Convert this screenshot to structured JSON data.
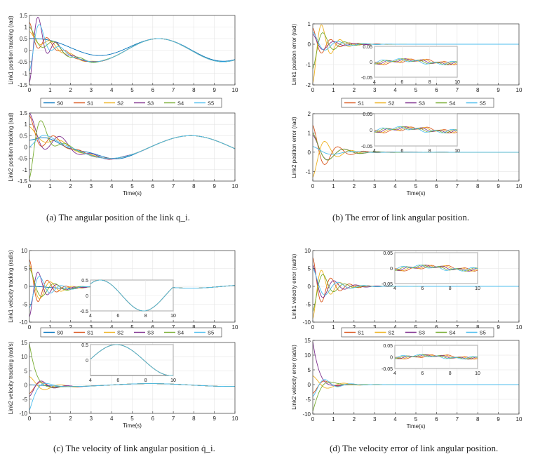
{
  "figure": {
    "captions": {
      "a": "(a)  The angular position of the link q_i.",
      "b": "(b)  The error of link angular position.",
      "c": "(c)  The velocity of link angular position q̇_i.",
      "d": "(d)  The velocity error of link angular position."
    }
  },
  "colors": {
    "S0": "#0072bd",
    "S1": "#d95319",
    "S2": "#edb120",
    "S3": "#7e2f8e",
    "S4": "#77ac30",
    "S5": "#4dbeee",
    "ERR": "#d62728"
  },
  "chart_data": [
    {
      "id": "a-top",
      "type": "line",
      "ylabel": "Link1 position tracking (rad)",
      "xlabel": "",
      "xlim": [
        0,
        10
      ],
      "ylim": [
        -1.5,
        1.5
      ],
      "xticks": [
        0,
        1,
        2,
        3,
        4,
        5,
        6,
        7,
        8,
        9,
        10
      ],
      "yticks": [
        -1.5,
        -1,
        -0.5,
        0,
        0.5,
        1,
        1.5
      ],
      "grid": true,
      "legend": [
        "S0",
        "S1",
        "S2",
        "S3",
        "S4",
        "S5"
      ],
      "reference": {
        "amp": 0.5,
        "freq": 1.0,
        "phase": 0.0
      },
      "series": [
        {
          "name": "S0",
          "values": {
            "x0": 0.0,
            "y0": 0.5,
            "decay": 0.4,
            "osc": 0
          }
        },
        {
          "name": "S1",
          "values": {
            "x0": 0.0,
            "y0": 1.2,
            "decay": 1.6,
            "osc": 7
          }
        },
        {
          "name": "S2",
          "values": {
            "x0": 0.0,
            "y0": 0.8,
            "decay": 1.3,
            "osc": 6
          }
        },
        {
          "name": "S3",
          "values": {
            "x0": 0.0,
            "y0": -1.4,
            "decay": 1.5,
            "osc": 7
          }
        },
        {
          "name": "S4",
          "values": {
            "x0": 0.0,
            "y0": 1.0,
            "decay": 1.2,
            "osc": 5
          }
        },
        {
          "name": "S5",
          "values": {
            "x0": 0.0,
            "y0": -0.9,
            "decay": 1.4,
            "osc": 6
          }
        }
      ]
    },
    {
      "id": "a-bottom",
      "type": "line",
      "ylabel": "Link2 position tracking (rad)",
      "xlabel": "Time(s)",
      "xlim": [
        0,
        10
      ],
      "ylim": [
        -1.5,
        1.5
      ],
      "xticks": [
        0,
        1,
        2,
        3,
        4,
        5,
        6,
        7,
        8,
        9,
        10
      ],
      "yticks": [
        -1.5,
        -1,
        -0.5,
        0,
        0.5,
        1,
        1.5
      ],
      "grid": true,
      "reference": {
        "amp": 0.5,
        "freq": 0.8,
        "phase": 0.0
      },
      "series": [
        {
          "name": "S0",
          "values": {
            "y0": 0.3,
            "decay": 0.6,
            "osc": 2
          }
        },
        {
          "name": "S1",
          "values": {
            "y0": 1.4,
            "decay": 1.4,
            "osc": 5
          }
        },
        {
          "name": "S2",
          "values": {
            "y0": 0.9,
            "decay": 1.2,
            "osc": 4
          }
        },
        {
          "name": "S3",
          "values": {
            "y0": 1.5,
            "decay": 1.0,
            "osc": 4
          }
        },
        {
          "name": "S4",
          "values": {
            "y0": -1.4,
            "decay": 1.6,
            "osc": 5
          }
        },
        {
          "name": "S5",
          "values": {
            "y0": 0.0,
            "decay": 1.2,
            "osc": 3
          }
        }
      ]
    },
    {
      "id": "b-top",
      "type": "line",
      "ylabel": "Link1 position error (rad)",
      "xlabel": "",
      "xlim": [
        0,
        10
      ],
      "ylim": [
        -2,
        1
      ],
      "xticks": [
        0,
        1,
        2,
        3,
        4,
        5,
        6,
        7,
        8,
        9,
        10
      ],
      "yticks": [
        -2,
        -1,
        0,
        1
      ],
      "grid": true,
      "legend": [
        "S1",
        "S2",
        "S3",
        "S4",
        "S5"
      ],
      "series": [
        {
          "name": "S1",
          "values": {
            "y0": 0.8,
            "decay": 1.4,
            "osc": 7
          }
        },
        {
          "name": "S2",
          "values": {
            "y0": -1.9,
            "decay": 1.6,
            "osc": 7
          }
        },
        {
          "name": "S3",
          "values": {
            "y0": 0.5,
            "decay": 1.3,
            "osc": 6
          }
        },
        {
          "name": "S4",
          "values": {
            "y0": -1.2,
            "decay": 1.5,
            "osc": 6
          }
        },
        {
          "name": "S5",
          "values": {
            "y0": 0.6,
            "decay": 1.2,
            "osc": 5
          }
        }
      ],
      "inset": {
        "xlim": [
          4,
          10
        ],
        "ylim": [
          -0.05,
          0.05
        ],
        "xticks": [
          4,
          6,
          8,
          10
        ],
        "yticks": [
          -0.05,
          0,
          0.05
        ]
      }
    },
    {
      "id": "b-bottom",
      "type": "line",
      "ylabel": "Link2 position error (rad)",
      "xlabel": "Time(s)",
      "xlim": [
        0,
        10
      ],
      "ylim": [
        -1.5,
        2
      ],
      "xticks": [
        0,
        1,
        2,
        3,
        4,
        5,
        6,
        7,
        8,
        9,
        10
      ],
      "yticks": [
        -1,
        0,
        1,
        2
      ],
      "grid": true,
      "series": [
        {
          "name": "S1",
          "values": {
            "y0": 1.4,
            "decay": 1.3,
            "osc": 5
          }
        },
        {
          "name": "S2",
          "values": {
            "y0": -1.3,
            "decay": 1.4,
            "osc": 5
          }
        },
        {
          "name": "S3",
          "values": {
            "y0": 0.9,
            "decay": 1.1,
            "osc": 4
          }
        },
        {
          "name": "S4",
          "values": {
            "y0": 1.0,
            "decay": 1.2,
            "osc": 4
          }
        },
        {
          "name": "S5",
          "values": {
            "y0": 0.3,
            "decay": 1.0,
            "osc": 3
          }
        }
      ],
      "inset": {
        "xlim": [
          4,
          10
        ],
        "ylim": [
          -0.05,
          0.05
        ],
        "xticks": [
          4,
          6,
          8,
          10
        ],
        "yticks": [
          -0.05,
          0,
          0.05
        ]
      }
    },
    {
      "id": "c-top",
      "type": "line",
      "ylabel": "Link1 velocity tracking (rad/s)",
      "xlabel": "",
      "xlim": [
        0,
        10
      ],
      "ylim": [
        -10,
        10
      ],
      "xticks": [
        0,
        1,
        2,
        3,
        4,
        5,
        6,
        7,
        8,
        9,
        10
      ],
      "yticks": [
        -10,
        -5,
        0,
        5,
        10
      ],
      "grid": true,
      "legend": [
        "S0",
        "S1",
        "S2",
        "S3",
        "S4",
        "S5"
      ],
      "reference": {
        "amp": 0.5,
        "freq": 1.0,
        "phase": 1.57
      },
      "series": [
        {
          "name": "S0",
          "values": {
            "y0": 0.0,
            "decay": 0.8,
            "osc": 1
          }
        },
        {
          "name": "S1",
          "values": {
            "y0": 7.5,
            "decay": 1.5,
            "osc": 7
          }
        },
        {
          "name": "S2",
          "values": {
            "y0": 6.0,
            "decay": 1.3,
            "osc": 6
          }
        },
        {
          "name": "S3",
          "values": {
            "y0": -8.5,
            "decay": 1.6,
            "osc": 7
          }
        },
        {
          "name": "S4",
          "values": {
            "y0": 5.0,
            "decay": 1.2,
            "osc": 5
          }
        },
        {
          "name": "S5",
          "values": {
            "y0": -6.0,
            "decay": 1.3,
            "osc": 6
          }
        }
      ],
      "inset": {
        "xlim": [
          4,
          10
        ],
        "ylim": [
          -0.5,
          0.5
        ],
        "xticks": [
          4,
          6,
          8,
          10
        ],
        "yticks": [
          -0.5,
          0,
          0.5
        ]
      }
    },
    {
      "id": "c-bottom",
      "type": "line",
      "ylabel": "Link2 velocity tracking (rad/s)",
      "xlabel": "Time(s)",
      "xlim": [
        0,
        10
      ],
      "ylim": [
        -10,
        15
      ],
      "xticks": [
        0,
        1,
        2,
        3,
        4,
        5,
        6,
        7,
        8,
        9,
        10
      ],
      "yticks": [
        -10,
        -5,
        0,
        5,
        10,
        15
      ],
      "grid": true,
      "reference": {
        "amp": 0.5,
        "freq": 0.8,
        "phase": 1.57
      },
      "series": [
        {
          "name": "S0",
          "values": {
            "y0": 0.0,
            "decay": 0.8,
            "osc": 1
          }
        },
        {
          "name": "S1",
          "values": {
            "y0": -3.0,
            "decay": 1.5,
            "osc": 5
          }
        },
        {
          "name": "S2",
          "values": {
            "y0": 3.0,
            "decay": 1.2,
            "osc": 4
          }
        },
        {
          "name": "S3",
          "values": {
            "y0": -4.0,
            "decay": 1.4,
            "osc": 5
          }
        },
        {
          "name": "S4",
          "values": {
            "y0": 14.5,
            "decay": 3.0,
            "osc": 2
          }
        },
        {
          "name": "S5",
          "values": {
            "y0": -9.0,
            "decay": 2.5,
            "osc": 3
          }
        }
      ],
      "inset": {
        "xlim": [
          4,
          10
        ],
        "ylim": [
          -0.5,
          0.5
        ],
        "xticks": [
          4,
          6,
          8,
          10
        ],
        "yticks": [
          0,
          0.5
        ]
      }
    },
    {
      "id": "d-top",
      "type": "line",
      "ylabel": "Link1 velocity error (rad/s)",
      "xlabel": "",
      "xlim": [
        0,
        10
      ],
      "ylim": [
        -10,
        10
      ],
      "xticks": [
        0,
        1,
        2,
        3,
        4,
        5,
        6,
        7,
        8,
        9,
        10
      ],
      "yticks": [
        -10,
        -5,
        0,
        5,
        10
      ],
      "grid": true,
      "legend": [
        "S1",
        "S2",
        "S3",
        "S4",
        "S5"
      ],
      "series": [
        {
          "name": "S1",
          "values": {
            "y0": 8.0,
            "decay": 1.4,
            "osc": 7
          }
        },
        {
          "name": "S2",
          "values": {
            "y0": -9.0,
            "decay": 1.6,
            "osc": 7
          }
        },
        {
          "name": "S3",
          "values": {
            "y0": 6.0,
            "decay": 1.3,
            "osc": 6
          }
        },
        {
          "name": "S4",
          "values": {
            "y0": -7.0,
            "decay": 1.5,
            "osc": 6
          }
        },
        {
          "name": "S5",
          "values": {
            "y0": 5.0,
            "decay": 1.2,
            "osc": 5
          }
        }
      ],
      "inset": {
        "xlim": [
          4,
          10
        ],
        "ylim": [
          -0.05,
          0.05
        ],
        "xticks": [
          4,
          6,
          8,
          10
        ],
        "yticks": [
          -0.05,
          0,
          0.05
        ]
      }
    },
    {
      "id": "d-bottom",
      "type": "line",
      "ylabel": "Link2 velocity error (rad/s)",
      "xlabel": "Time(s)",
      "xlim": [
        0,
        10
      ],
      "ylim": [
        -10,
        15
      ],
      "xticks": [
        0,
        1,
        2,
        3,
        4,
        5,
        6,
        7,
        8,
        9,
        10
      ],
      "yticks": [
        -10,
        -5,
        0,
        5,
        10,
        15
      ],
      "grid": true,
      "series": [
        {
          "name": "S1",
          "values": {
            "y0": -3.0,
            "decay": 1.5,
            "osc": 5
          }
        },
        {
          "name": "S2",
          "values": {
            "y0": 3.0,
            "decay": 1.2,
            "osc": 4
          }
        },
        {
          "name": "S3",
          "values": {
            "y0": 14.5,
            "decay": 3.0,
            "osc": 2
          }
        },
        {
          "name": "S4",
          "values": {
            "y0": -9.0,
            "decay": 2.5,
            "osc": 3
          }
        },
        {
          "name": "S5",
          "values": {
            "y0": -4.0,
            "decay": 1.4,
            "osc": 5
          }
        }
      ],
      "inset": {
        "xlim": [
          4,
          10
        ],
        "ylim": [
          -0.05,
          0.05
        ],
        "xticks": [
          4,
          6,
          8,
          10
        ],
        "yticks": [
          -0.05,
          0,
          0.05
        ]
      }
    }
  ]
}
